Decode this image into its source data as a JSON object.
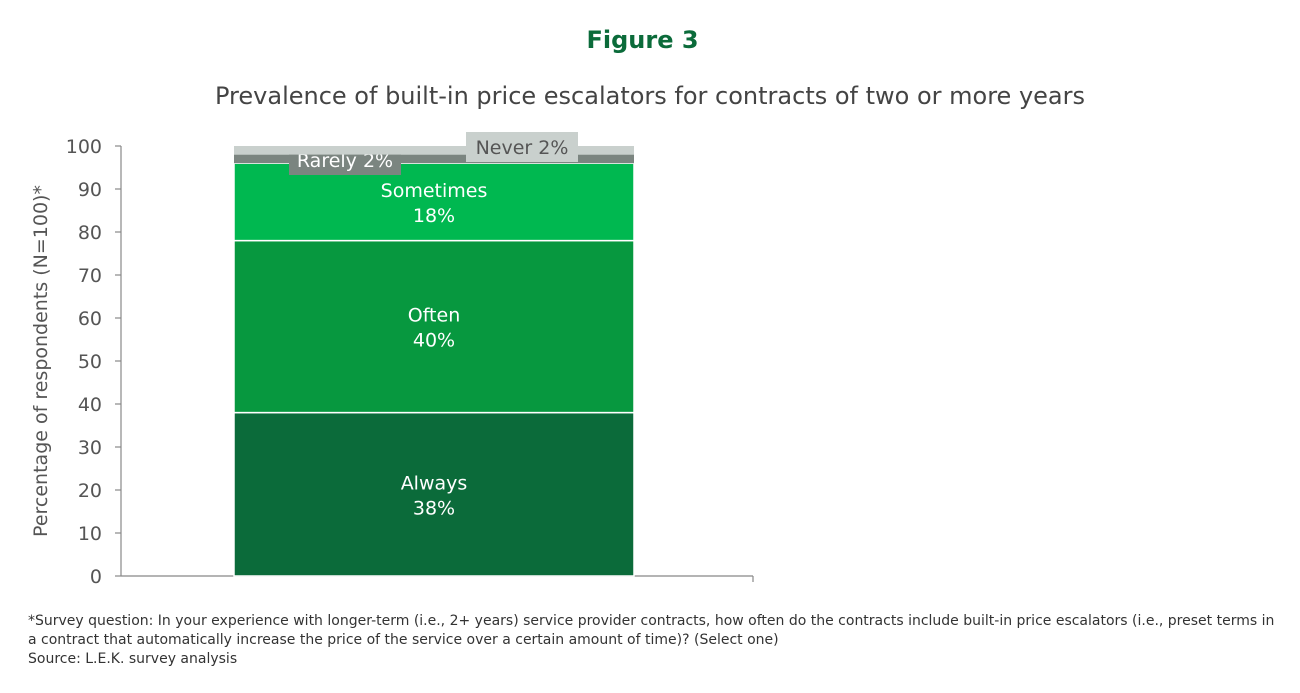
{
  "figure_label": "Figure 3",
  "chart_data": {
    "type": "bar",
    "stacked": true,
    "title": "Prevalence of built-in price escalators for contracts of two or more years",
    "xlabel": "",
    "ylabel": "Percentage of respondents (N=100)*",
    "ylim": [
      0,
      100
    ],
    "yticks": [
      0,
      10,
      20,
      30,
      40,
      50,
      60,
      70,
      80,
      90,
      100
    ],
    "grid": false,
    "categories": [
      ""
    ],
    "series": [
      {
        "name": "Always",
        "values": [
          38
        ],
        "label": "38%",
        "color": "#0b6b3a"
      },
      {
        "name": "Often",
        "values": [
          40
        ],
        "label": "40%",
        "color": "#07983f"
      },
      {
        "name": "Sometimes",
        "values": [
          18
        ],
        "label": "18%",
        "color": "#00b850"
      },
      {
        "name": "Rarely",
        "values": [
          2
        ],
        "label": "Rarely 2%",
        "color": "#7b8580"
      },
      {
        "name": "Never",
        "values": [
          2
        ],
        "label": "Never 2%",
        "color": "#c9d0cd"
      }
    ]
  },
  "footnote": {
    "question": "*Survey question: In your experience with longer-term (i.e., 2+ years) service provider contracts, how often do the contracts include built-in price escalators (i.e., preset terms in a contract that automatically increase the price of the service over a certain amount of time)? (Select one)",
    "source": "Source: L.E.K. survey analysis"
  }
}
